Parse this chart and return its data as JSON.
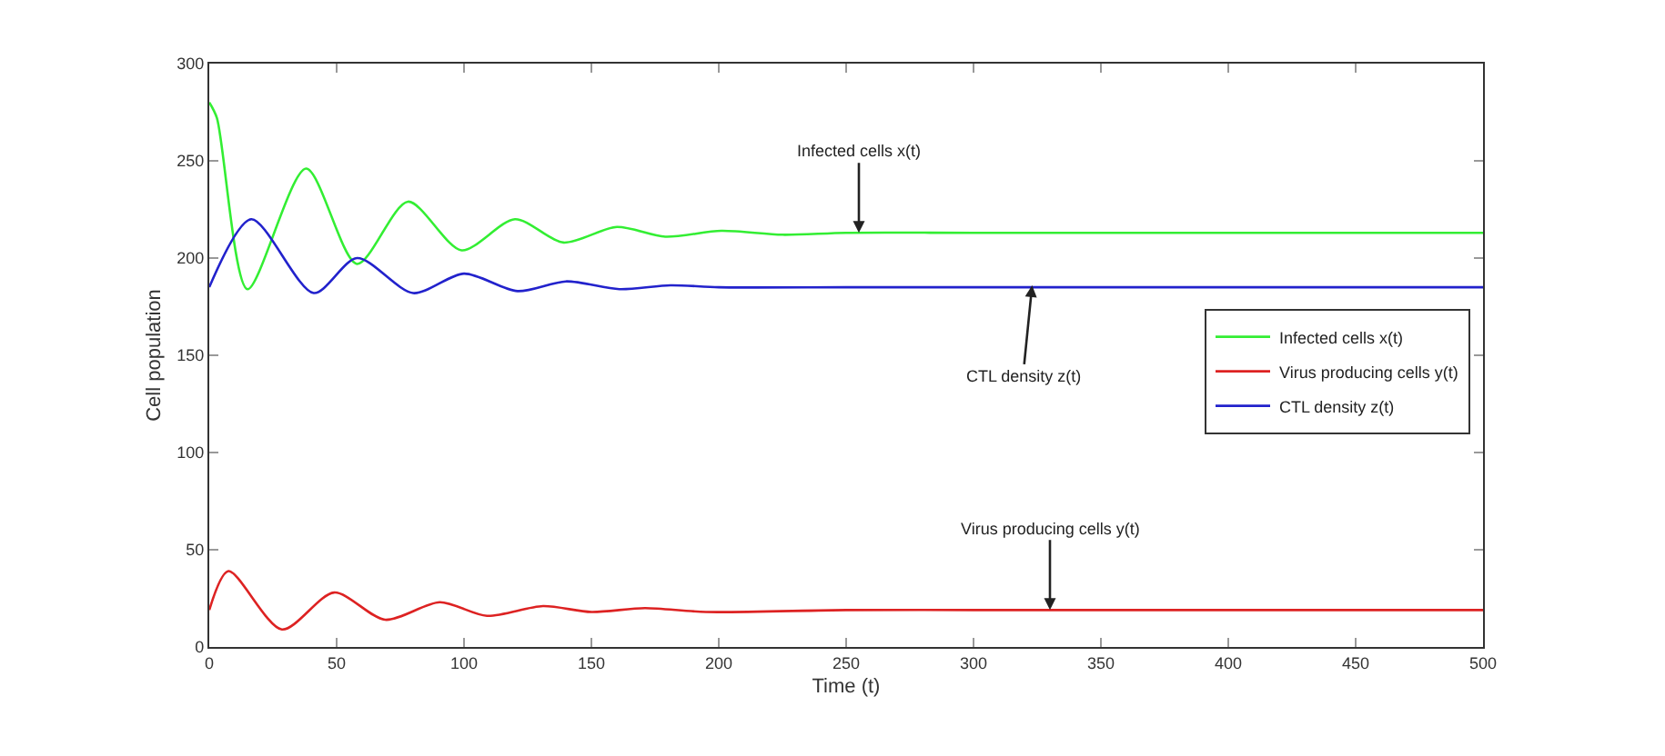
{
  "chart_data": {
    "type": "line",
    "xlabel": "Time (t)",
    "ylabel": "Cell population",
    "xlim": [
      0,
      500
    ],
    "xticks": [
      0,
      50,
      100,
      150,
      200,
      250,
      300,
      350,
      400,
      450,
      500
    ],
    "ylim": [
      0,
      300
    ],
    "yticks": [
      0,
      50,
      100,
      150,
      200,
      250,
      300
    ],
    "legend": "right",
    "marker": "none",
    "line_style": "solid",
    "series": [
      {
        "name": "Infected cells x(t)",
        "color": "#33ee33",
        "x": [
          0,
          3,
          15,
          38,
          58,
          78,
          99,
          120,
          139,
          160,
          179,
          201,
          225,
          250,
          300,
          400,
          500
        ],
        "values": [
          280,
          272,
          184,
          246,
          197,
          229,
          204,
          220,
          208,
          216,
          211,
          214,
          212,
          213,
          213,
          213,
          213
        ]
      },
      {
        "name": "Virus producing cells y(t)",
        "color": "#dd2222",
        "x": [
          0,
          7.5,
          28.5,
          49,
          69,
          90.5,
          109,
          131,
          150,
          171,
          195,
          250,
          300,
          400,
          500
        ],
        "values": [
          19,
          39,
          9,
          28,
          14,
          23,
          16,
          21,
          18,
          20,
          18,
          19,
          19,
          19,
          19
        ]
      },
      {
        "name": "CTL density z(t)",
        "color": "#2222cc",
        "x": [
          0,
          16.5,
          41,
          58,
          80,
          100,
          121,
          140,
          161,
          181,
          200,
          250,
          300,
          400,
          500
        ],
        "values": [
          185,
          220,
          182,
          200,
          182,
          192,
          183,
          188,
          184,
          186,
          185,
          185,
          185,
          185,
          185
        ]
      }
    ],
    "annotations": [
      {
        "text": "Infected cells x(t)",
        "x": 255,
        "y": 213
      },
      {
        "text": "CTL density z(t)",
        "x": 323,
        "y": 186
      },
      {
        "text": "Virus producing cells y(t)",
        "x": 330,
        "y": 19
      }
    ]
  }
}
